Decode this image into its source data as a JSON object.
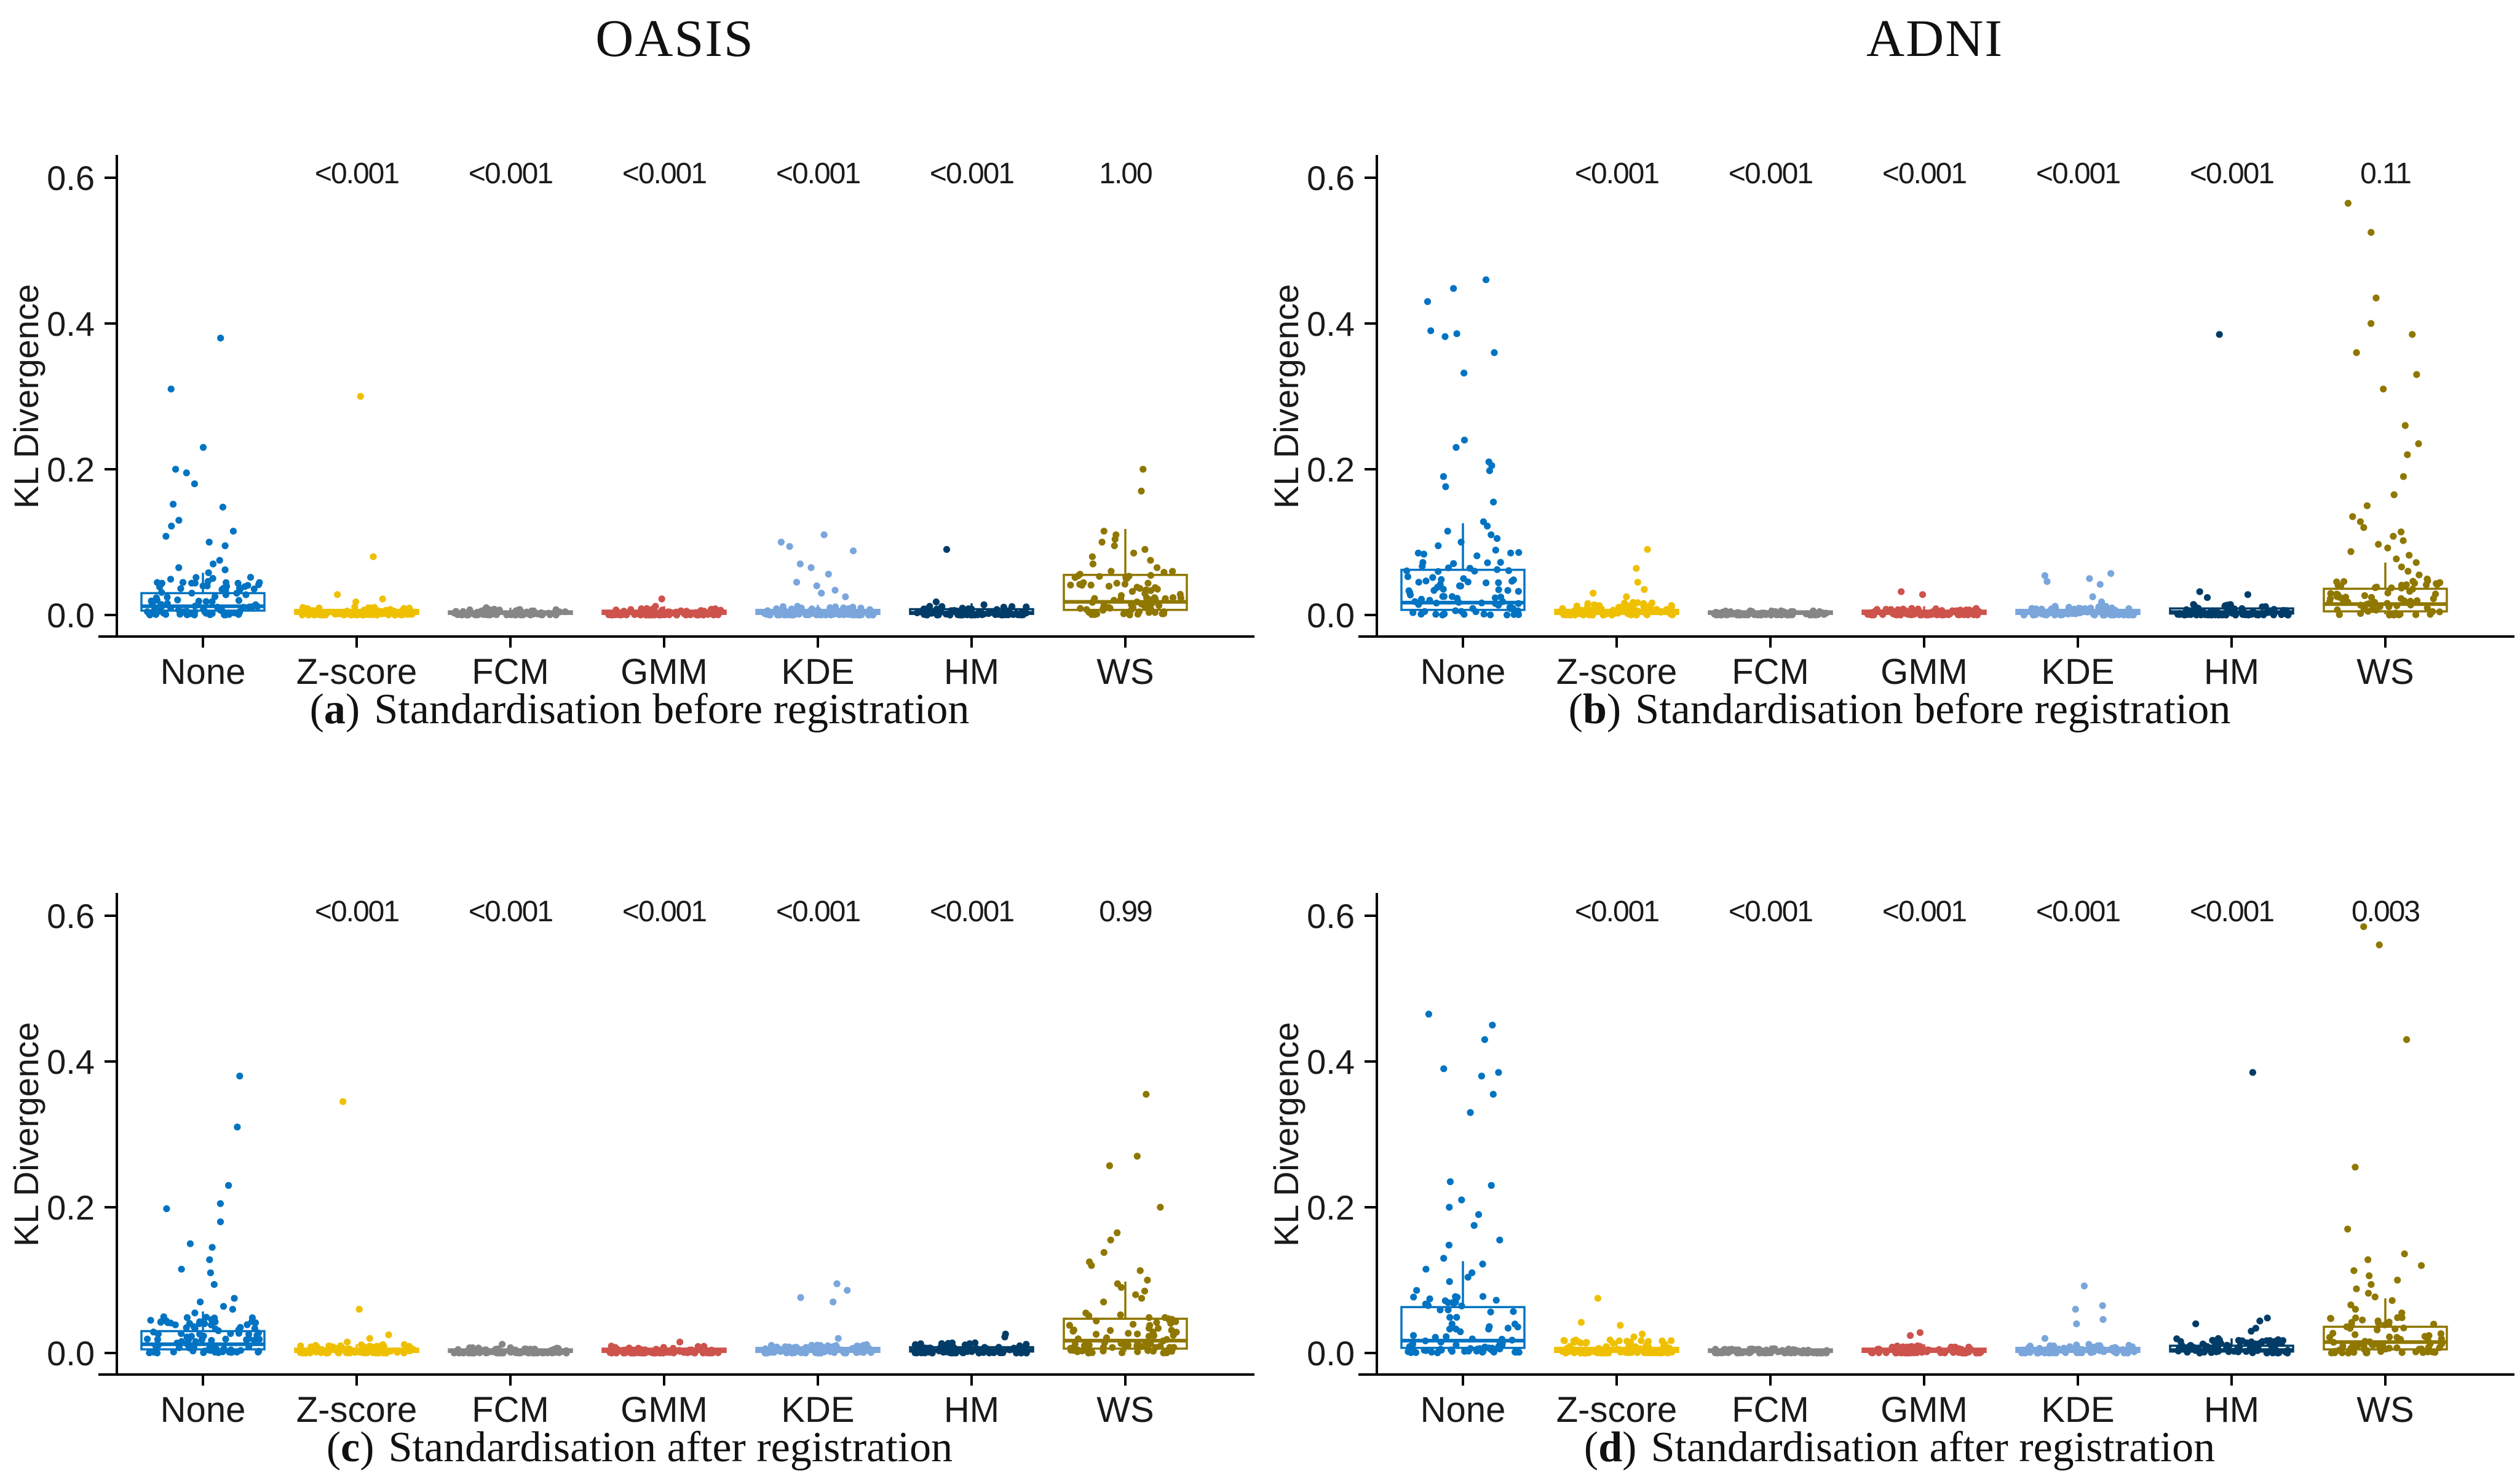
{
  "figure": {
    "background": "#ffffff",
    "axis_color": "#000000",
    "palette": {
      "None": "#0073C2",
      "Z-score": "#EFC000",
      "FCM": "#868686",
      "GMM": "#CD534C",
      "KDE": "#7AA6DC",
      "HM": "#003C67",
      "WS": "#8F7700"
    }
  },
  "chart_data": [
    {
      "type": "boxplot-jitter",
      "title": "OASIS",
      "caption": {
        "open": "(",
        "letter": "a",
        "close": ")",
        "text": "Standardisation before registration"
      },
      "ylabel": "KL Divergence",
      "ylim": [
        -0.03,
        0.65
      ],
      "yticks": [
        {
          "label": "0.0",
          "value": 0.0
        },
        {
          "label": "0.2",
          "value": 0.2
        },
        {
          "label": "0.4",
          "value": 0.4
        },
        {
          "label": "0.6",
          "value": 0.6
        }
      ],
      "categories": [
        "None",
        "Z-score",
        "FCM",
        "GMM",
        "KDE",
        "HM",
        "WS"
      ],
      "p_values": [
        "<0.001",
        "<0.001",
        "<0.001",
        "<0.001",
        "<0.001",
        "1.00"
      ],
      "groups": [
        {
          "label": "None",
          "color": "#0073C2",
          "box": {
            "lo": 0.001,
            "q1": 0.006,
            "med": 0.012,
            "q3": 0.03,
            "hi": 0.058
          },
          "cluster": {
            "count": 95,
            "max": 0.052,
            "pow": 1.7
          },
          "outliers": [
            0.38,
            0.31,
            0.23,
            0.2,
            0.195,
            0.18,
            0.152,
            0.148,
            0.13,
            0.122,
            0.115,
            0.108,
            0.1,
            0.095,
            0.075,
            0.07,
            0.065,
            0.062,
            0.058
          ]
        },
        {
          "label": "Z-score",
          "color": "#EFC000",
          "box": {
            "lo": 0.0005,
            "q1": 0.0015,
            "med": 0.003,
            "q3": 0.007,
            "hi": 0.014
          },
          "cluster": {
            "count": 85,
            "max": 0.012,
            "pow": 2.4
          },
          "outliers": [
            0.3,
            0.08,
            0.028,
            0.022,
            0.018
          ]
        },
        {
          "label": "FCM",
          "color": "#868686",
          "box": {
            "lo": 0.0005,
            "q1": 0.0015,
            "med": 0.003,
            "q3": 0.005,
            "hi": 0.01
          },
          "cluster": {
            "count": 85,
            "max": 0.008,
            "pow": 2.4
          },
          "outliers": [
            0.01
          ]
        },
        {
          "label": "GMM",
          "color": "#CD534C",
          "box": {
            "lo": 0.0005,
            "q1": 0.0015,
            "med": 0.003,
            "q3": 0.006,
            "hi": 0.012
          },
          "cluster": {
            "count": 85,
            "max": 0.009,
            "pow": 2.4
          },
          "outliers": [
            0.022,
            0.012
          ]
        },
        {
          "label": "KDE",
          "color": "#7AA6DC",
          "box": {
            "lo": 0.0005,
            "q1": 0.0015,
            "med": 0.003,
            "q3": 0.007,
            "hi": 0.014
          },
          "cluster": {
            "count": 80,
            "max": 0.012,
            "pow": 2.4
          },
          "outliers": [
            0.11,
            0.1,
            0.094,
            0.088,
            0.07,
            0.065,
            0.056,
            0.045,
            0.04,
            0.034,
            0.03,
            0.025
          ]
        },
        {
          "label": "HM",
          "color": "#003C67",
          "box": {
            "lo": 0.0005,
            "q1": 0.0015,
            "med": 0.003,
            "q3": 0.008,
            "hi": 0.016
          },
          "cluster": {
            "count": 85,
            "max": 0.012,
            "pow": 2.4
          },
          "outliers": [
            0.09,
            0.018,
            0.014
          ]
        },
        {
          "label": "WS",
          "color": "#8F7700",
          "box": {
            "lo": 0.002,
            "q1": 0.007,
            "med": 0.018,
            "q3": 0.055,
            "hi": 0.118
          },
          "cluster": {
            "count": 75,
            "max": 0.06,
            "pow": 1.6
          },
          "outliers": [
            0.2,
            0.17,
            0.115,
            0.11,
            0.104,
            0.1,
            0.095,
            0.09,
            0.085,
            0.08,
            0.075,
            0.07,
            0.065
          ]
        }
      ]
    },
    {
      "type": "boxplot-jitter",
      "title": "ADNI",
      "caption": {
        "open": "(",
        "letter": "b",
        "close": ")",
        "text": "Standardisation before registration"
      },
      "ylabel": "KL Divergence",
      "ylim": [
        -0.03,
        0.65
      ],
      "yticks": [
        {
          "label": "0.0",
          "value": 0.0
        },
        {
          "label": "0.2",
          "value": 0.2
        },
        {
          "label": "0.4",
          "value": 0.4
        },
        {
          "label": "0.6",
          "value": 0.6
        }
      ],
      "categories": [
        "None",
        "Z-score",
        "FCM",
        "GMM",
        "KDE",
        "HM",
        "WS"
      ],
      "p_values": [
        "<0.001",
        "<0.001",
        "<0.001",
        "<0.001",
        "<0.001",
        "0.11"
      ],
      "groups": [
        {
          "label": "None",
          "color": "#0073C2",
          "box": {
            "lo": 0.001,
            "q1": 0.007,
            "med": 0.017,
            "q3": 0.062,
            "hi": 0.126
          },
          "cluster": {
            "count": 80,
            "max": 0.09,
            "pow": 2.0
          },
          "outliers": [
            0.46,
            0.448,
            0.43,
            0.39,
            0.386,
            0.382,
            0.36,
            0.332,
            0.24,
            0.23,
            0.21,
            0.205,
            0.198,
            0.19,
            0.176,
            0.155,
            0.128,
            0.122,
            0.115,
            0.11,
            0.105,
            0.1,
            0.095
          ]
        },
        {
          "label": "Z-score",
          "color": "#EFC000",
          "box": {
            "lo": 0.0005,
            "q1": 0.0015,
            "med": 0.003,
            "q3": 0.007,
            "hi": 0.014
          },
          "cluster": {
            "count": 85,
            "max": 0.018,
            "pow": 2.4
          },
          "outliers": [
            0.09,
            0.064,
            0.045,
            0.035,
            0.03,
            0.025
          ]
        },
        {
          "label": "FCM",
          "color": "#868686",
          "box": {
            "lo": 0.0005,
            "q1": 0.0015,
            "med": 0.003,
            "q3": 0.005,
            "hi": 0.01
          },
          "cluster": {
            "count": 90,
            "max": 0.006,
            "pow": 2.4
          },
          "outliers": []
        },
        {
          "label": "GMM",
          "color": "#CD534C",
          "box": {
            "lo": 0.0005,
            "q1": 0.0015,
            "med": 0.003,
            "q3": 0.006,
            "hi": 0.012
          },
          "cluster": {
            "count": 85,
            "max": 0.009,
            "pow": 2.4
          },
          "outliers": [
            0.032,
            0.028
          ]
        },
        {
          "label": "KDE",
          "color": "#7AA6DC",
          "box": {
            "lo": 0.0005,
            "q1": 0.0015,
            "med": 0.003,
            "q3": 0.007,
            "hi": 0.014
          },
          "cluster": {
            "count": 80,
            "max": 0.012,
            "pow": 2.4
          },
          "outliers": [
            0.057,
            0.054,
            0.05,
            0.046,
            0.042,
            0.025,
            0.018
          ]
        },
        {
          "label": "HM",
          "color": "#003C67",
          "box": {
            "lo": 0.0005,
            "q1": 0.002,
            "med": 0.004,
            "q3": 0.009,
            "hi": 0.018
          },
          "cluster": {
            "count": 85,
            "max": 0.016,
            "pow": 2.2
          },
          "outliers": [
            0.385,
            0.032,
            0.028,
            0.024
          ]
        },
        {
          "label": "WS",
          "color": "#8F7700",
          "box": {
            "lo": 0.001,
            "q1": 0.005,
            "med": 0.015,
            "q3": 0.036,
            "hi": 0.072
          },
          "cluster": {
            "count": 70,
            "max": 0.05,
            "pow": 1.8
          },
          "outliers": [
            0.565,
            0.525,
            0.435,
            0.4,
            0.385,
            0.36,
            0.33,
            0.31,
            0.26,
            0.235,
            0.22,
            0.19,
            0.165,
            0.15,
            0.135,
            0.128,
            0.12,
            0.114,
            0.108,
            0.102,
            0.097,
            0.092,
            0.087,
            0.082,
            0.077,
            0.072,
            0.066,
            0.06,
            0.055
          ]
        }
      ]
    },
    {
      "type": "boxplot-jitter",
      "title": "",
      "caption": {
        "open": "(",
        "letter": "c",
        "close": ")",
        "text": "Standardisation after registration"
      },
      "ylabel": "KL Divergence",
      "ylim": [
        -0.03,
        0.65
      ],
      "yticks": [
        {
          "label": "0.0",
          "value": 0.0
        },
        {
          "label": "0.2",
          "value": 0.2
        },
        {
          "label": "0.4",
          "value": 0.4
        },
        {
          "label": "0.6",
          "value": 0.6
        }
      ],
      "categories": [
        "None",
        "Z-score",
        "FCM",
        "GMM",
        "KDE",
        "HM",
        "WS"
      ],
      "p_values": [
        "<0.001",
        "<0.001",
        "<0.001",
        "<0.001",
        "<0.001",
        "0.99"
      ],
      "groups": [
        {
          "label": "None",
          "color": "#0073C2",
          "box": {
            "lo": 0.001,
            "q1": 0.005,
            "med": 0.012,
            "q3": 0.03,
            "hi": 0.057
          },
          "cluster": {
            "count": 90,
            "max": 0.052,
            "pow": 1.7
          },
          "outliers": [
            0.38,
            0.31,
            0.23,
            0.205,
            0.198,
            0.18,
            0.15,
            0.145,
            0.128,
            0.115,
            0.11,
            0.094,
            0.075,
            0.07,
            0.064,
            0.06,
            0.055
          ]
        },
        {
          "label": "Z-score",
          "color": "#EFC000",
          "box": {
            "lo": 0.0005,
            "q1": 0.0015,
            "med": 0.003,
            "q3": 0.006,
            "hi": 0.012
          },
          "cluster": {
            "count": 85,
            "max": 0.012,
            "pow": 2.4
          },
          "outliers": [
            0.345,
            0.06,
            0.025,
            0.02,
            0.015
          ]
        },
        {
          "label": "FCM",
          "color": "#868686",
          "box": {
            "lo": 0.0005,
            "q1": 0.0015,
            "med": 0.003,
            "q3": 0.005,
            "hi": 0.01
          },
          "cluster": {
            "count": 88,
            "max": 0.008,
            "pow": 2.4
          },
          "outliers": [
            0.012
          ]
        },
        {
          "label": "GMM",
          "color": "#CD534C",
          "box": {
            "lo": 0.0005,
            "q1": 0.0015,
            "med": 0.003,
            "q3": 0.006,
            "hi": 0.012
          },
          "cluster": {
            "count": 85,
            "max": 0.01,
            "pow": 2.4
          },
          "outliers": [
            0.015
          ]
        },
        {
          "label": "KDE",
          "color": "#7AA6DC",
          "box": {
            "lo": 0.0005,
            "q1": 0.0015,
            "med": 0.003,
            "q3": 0.007,
            "hi": 0.014
          },
          "cluster": {
            "count": 80,
            "max": 0.012,
            "pow": 2.4
          },
          "outliers": [
            0.095,
            0.086,
            0.076,
            0.07,
            0.02
          ]
        },
        {
          "label": "HM",
          "color": "#003C67",
          "box": {
            "lo": 0.0005,
            "q1": 0.002,
            "med": 0.004,
            "q3": 0.008,
            "hi": 0.016
          },
          "cluster": {
            "count": 85,
            "max": 0.015,
            "pow": 2.3
          },
          "outliers": [
            0.026,
            0.022
          ]
        },
        {
          "label": "WS",
          "color": "#8F7700",
          "box": {
            "lo": 0.002,
            "q1": 0.006,
            "med": 0.017,
            "q3": 0.047,
            "hi": 0.098
          },
          "cluster": {
            "count": 70,
            "max": 0.055,
            "pow": 1.7
          },
          "outliers": [
            0.355,
            0.27,
            0.257,
            0.2,
            0.165,
            0.155,
            0.138,
            0.125,
            0.12,
            0.113,
            0.1,
            0.095,
            0.09,
            0.085,
            0.08,
            0.075,
            0.07
          ]
        }
      ]
    },
    {
      "type": "boxplot-jitter",
      "title": "",
      "caption": {
        "open": "(",
        "letter": "d",
        "close": ")",
        "text": "Standardisation after registration"
      },
      "ylabel": "KL Divergence",
      "ylim": [
        -0.03,
        0.65
      ],
      "yticks": [
        {
          "label": "0.0",
          "value": 0.0
        },
        {
          "label": "0.2",
          "value": 0.2
        },
        {
          "label": "0.4",
          "value": 0.4
        },
        {
          "label": "0.6",
          "value": 0.6
        }
      ],
      "categories": [
        "None",
        "Z-score",
        "FCM",
        "GMM",
        "KDE",
        "HM",
        "WS"
      ],
      "p_values": [
        "<0.001",
        "<0.001",
        "<0.001",
        "<0.001",
        "<0.001",
        "0.003"
      ],
      "groups": [
        {
          "label": "None",
          "color": "#0073C2",
          "box": {
            "lo": 0.001,
            "q1": 0.007,
            "med": 0.017,
            "q3": 0.063,
            "hi": 0.126
          },
          "cluster": {
            "count": 80,
            "max": 0.09,
            "pow": 2.0
          },
          "outliers": [
            0.465,
            0.45,
            0.43,
            0.39,
            0.385,
            0.38,
            0.355,
            0.33,
            0.235,
            0.23,
            0.21,
            0.2,
            0.19,
            0.175,
            0.155,
            0.148,
            0.13,
            0.122,
            0.115,
            0.11,
            0.104,
            0.098
          ]
        },
        {
          "label": "Z-score",
          "color": "#EFC000",
          "box": {
            "lo": 0.0005,
            "q1": 0.0015,
            "med": 0.003,
            "q3": 0.007,
            "hi": 0.014
          },
          "cluster": {
            "count": 85,
            "max": 0.018,
            "pow": 2.4
          },
          "outliers": [
            0.075,
            0.042,
            0.038,
            0.026,
            0.022
          ]
        },
        {
          "label": "FCM",
          "color": "#868686",
          "box": {
            "lo": 0.0005,
            "q1": 0.0015,
            "med": 0.003,
            "q3": 0.005,
            "hi": 0.01
          },
          "cluster": {
            "count": 90,
            "max": 0.006,
            "pow": 2.4
          },
          "outliers": []
        },
        {
          "label": "GMM",
          "color": "#CD534C",
          "box": {
            "lo": 0.0005,
            "q1": 0.0015,
            "med": 0.003,
            "q3": 0.006,
            "hi": 0.012
          },
          "cluster": {
            "count": 85,
            "max": 0.01,
            "pow": 2.4
          },
          "outliers": [
            0.028,
            0.024
          ]
        },
        {
          "label": "KDE",
          "color": "#7AA6DC",
          "box": {
            "lo": 0.0005,
            "q1": 0.0015,
            "med": 0.003,
            "q3": 0.007,
            "hi": 0.014
          },
          "cluster": {
            "count": 80,
            "max": 0.012,
            "pow": 2.4
          },
          "outliers": [
            0.092,
            0.065,
            0.06,
            0.046,
            0.04,
            0.02
          ]
        },
        {
          "label": "HM",
          "color": "#003C67",
          "box": {
            "lo": 0.0005,
            "q1": 0.002,
            "med": 0.004,
            "q3": 0.01,
            "hi": 0.02
          },
          "cluster": {
            "count": 85,
            "max": 0.02,
            "pow": 2.0
          },
          "outliers": [
            0.385,
            0.048,
            0.044,
            0.04,
            0.034,
            0.03
          ]
        },
        {
          "label": "WS",
          "color": "#8F7700",
          "box": {
            "lo": 0.001,
            "q1": 0.005,
            "med": 0.015,
            "q3": 0.036,
            "hi": 0.075
          },
          "cluster": {
            "count": 72,
            "max": 0.05,
            "pow": 1.8
          },
          "outliers": [
            0.585,
            0.56,
            0.43,
            0.255,
            0.17,
            0.136,
            0.128,
            0.12,
            0.113,
            0.106,
            0.1,
            0.094,
            0.088,
            0.082,
            0.077,
            0.072,
            0.066,
            0.06,
            0.055
          ]
        }
      ]
    }
  ]
}
